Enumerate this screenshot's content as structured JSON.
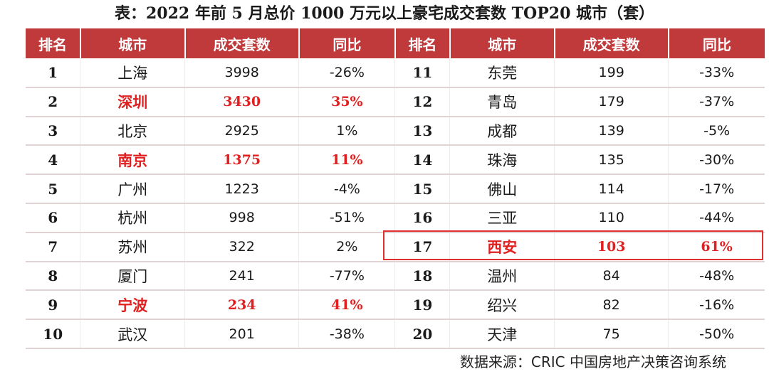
{
  "title": "表：2022 年前 5 月总价 1000 万元以上豪宅成交套数 TOP20 城市（套）",
  "headers": [
    "排名",
    "城市",
    "成交套数",
    "同比",
    "排名",
    "城市",
    "成交套数",
    "同比"
  ],
  "rows": [
    {
      "left": {
        "rank": "1",
        "city": "上海",
        "count": "3998",
        "yoy": "-26%",
        "highlight": false
      },
      "right": {
        "rank": "11",
        "city": "东莞",
        "count": "199",
        "yoy": "-33%",
        "highlight": false
      }
    },
    {
      "left": {
        "rank": "2",
        "city": "深圳",
        "count": "3430",
        "yoy": "35%",
        "highlight": true
      },
      "right": {
        "rank": "12",
        "city": "青岛",
        "count": "179",
        "yoy": "-37%",
        "highlight": false
      }
    },
    {
      "left": {
        "rank": "3",
        "city": "北京",
        "count": "2925",
        "yoy": "1%",
        "highlight": false
      },
      "right": {
        "rank": "13",
        "city": "成都",
        "count": "139",
        "yoy": "-5%",
        "highlight": false
      }
    },
    {
      "left": {
        "rank": "4",
        "city": "南京",
        "count": "1375",
        "yoy": "11%",
        "highlight": true
      },
      "right": {
        "rank": "14",
        "city": "珠海",
        "count": "135",
        "yoy": "-30%",
        "highlight": false
      }
    },
    {
      "left": {
        "rank": "5",
        "city": "广州",
        "count": "1223",
        "yoy": "-4%",
        "highlight": false
      },
      "right": {
        "rank": "15",
        "city": "佛山",
        "count": "114",
        "yoy": "-17%",
        "highlight": false
      }
    },
    {
      "left": {
        "rank": "6",
        "city": "杭州",
        "count": "998",
        "yoy": "-51%",
        "highlight": false
      },
      "right": {
        "rank": "16",
        "city": "三亚",
        "count": "110",
        "yoy": "-44%",
        "highlight": false
      }
    },
    {
      "left": {
        "rank": "7",
        "city": "苏州",
        "count": "322",
        "yoy": "2%",
        "highlight": false
      },
      "right": {
        "rank": "17",
        "city": "西安",
        "count": "103",
        "yoy": "61%",
        "highlight": true
      }
    },
    {
      "left": {
        "rank": "8",
        "city": "厦门",
        "count": "241",
        "yoy": "-77%",
        "highlight": false
      },
      "right": {
        "rank": "18",
        "city": "温州",
        "count": "84",
        "yoy": "-48%",
        "highlight": false
      }
    },
    {
      "left": {
        "rank": "9",
        "city": "宁波",
        "count": "234",
        "yoy": "41%",
        "highlight": true
      },
      "right": {
        "rank": "19",
        "city": "绍兴",
        "count": "82",
        "yoy": "-16%",
        "highlight": false
      }
    },
    {
      "left": {
        "rank": "10",
        "city": "武汉",
        "count": "201",
        "yoy": "-38%",
        "highlight": false
      },
      "right": {
        "rank": "20",
        "city": "天津",
        "count": "75",
        "yoy": "-50%",
        "highlight": false
      }
    }
  ],
  "source": "数据来源：CRIC 中国房地产决策咨询系统",
  "colors": {
    "header_bg": "#c0393b",
    "highlight_text": "#e02020"
  }
}
